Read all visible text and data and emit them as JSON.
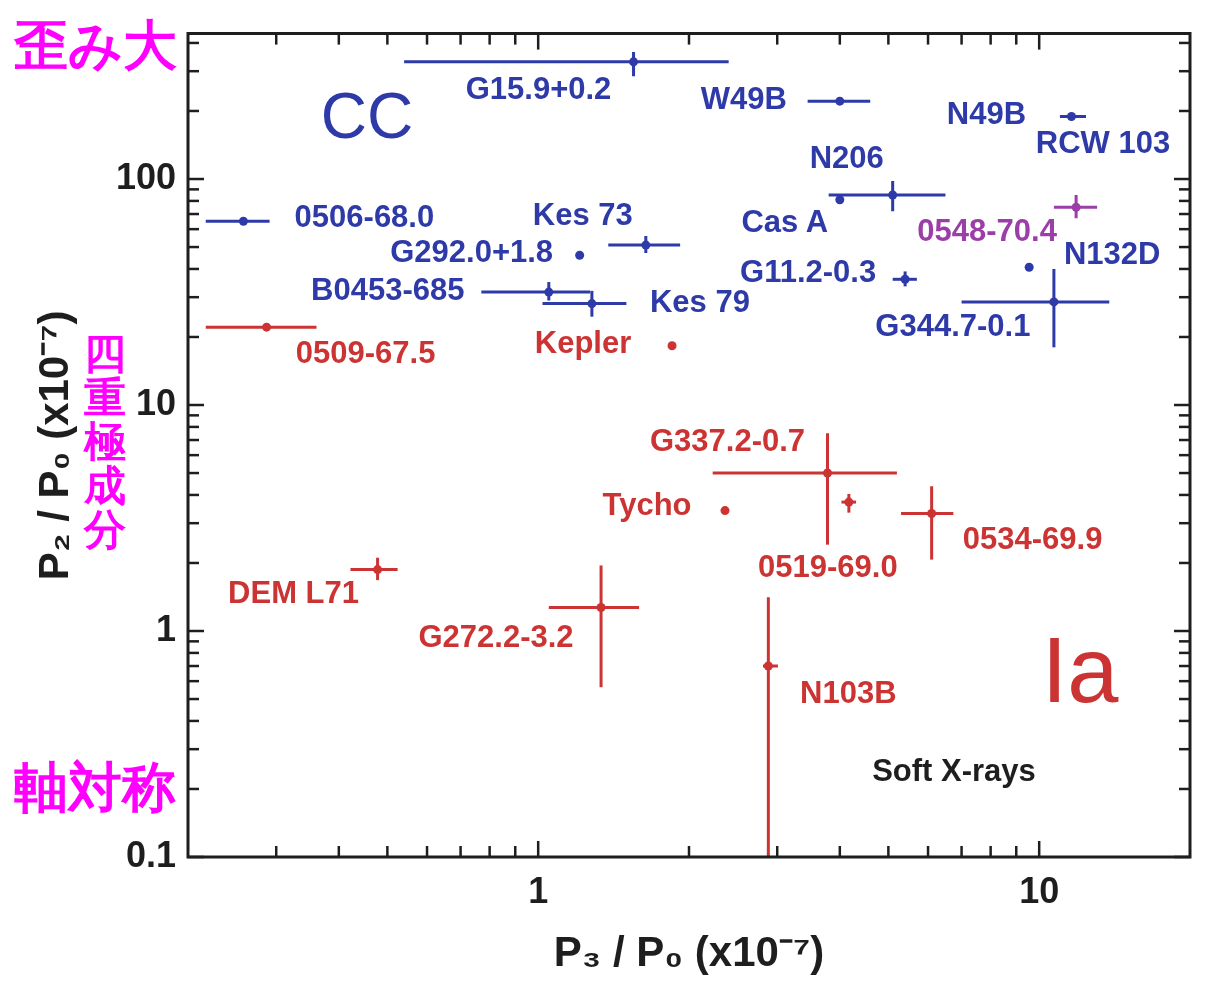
{
  "chart_data": {
    "type": "scatter",
    "log": "xy",
    "marker": "circle",
    "xlabel": "P₃ / P₀ (x10⁻⁷)",
    "ylabel": "P₂ / P₀ (x10⁻⁷)",
    "xlim": [
      0.2,
      20
    ],
    "ylim": [
      0.1,
      440
    ],
    "xticks": [
      {
        "value": 0.3,
        "label": null
      },
      {
        "value": 0.4,
        "label": null
      },
      {
        "value": 0.5,
        "label": null
      },
      {
        "value": 0.6,
        "label": null
      },
      {
        "value": 0.7,
        "label": null
      },
      {
        "value": 0.8,
        "label": null
      },
      {
        "value": 0.9,
        "label": null
      },
      1,
      {
        "value": 2,
        "label": null
      },
      {
        "value": 3,
        "label": null
      },
      {
        "value": 4,
        "label": null
      },
      {
        "value": 5,
        "label": null
      },
      {
        "value": 6,
        "label": null
      },
      {
        "value": 7,
        "label": null
      },
      {
        "value": 8,
        "label": null
      },
      {
        "value": 9,
        "label": null
      },
      10
    ],
    "yticks": [
      0.1,
      {
        "value": 0.2,
        "label": null
      },
      {
        "value": 0.3,
        "label": null
      },
      {
        "value": 0.4,
        "label": null
      },
      {
        "value": 0.5,
        "label": null
      },
      {
        "value": 0.6,
        "label": null
      },
      {
        "value": 0.7,
        "label": null
      },
      {
        "value": 0.8,
        "label": null
      },
      {
        "value": 0.9,
        "label": null
      },
      1,
      {
        "value": 2,
        "label": null
      },
      {
        "value": 3,
        "label": null
      },
      {
        "value": 4,
        "label": null
      },
      {
        "value": 5,
        "label": null
      },
      {
        "value": 6,
        "label": null
      },
      {
        "value": 7,
        "label": null
      },
      {
        "value": 8,
        "label": null
      },
      {
        "value": 9,
        "label": null
      },
      10,
      {
        "value": 20,
        "label": null
      },
      {
        "value": 30,
        "label": null
      },
      {
        "value": 40,
        "label": null
      },
      {
        "value": 50,
        "label": null
      },
      {
        "value": 60,
        "label": null
      },
      {
        "value": 70,
        "label": null
      },
      {
        "value": 80,
        "label": null
      },
      {
        "value": 90,
        "label": null
      },
      100,
      {
        "value": 200,
        "label": null
      },
      {
        "value": 300,
        "label": null
      },
      {
        "value": 400,
        "label": null
      }
    ],
    "series": [
      {
        "color": "#2d3aa8",
        "x": [
          1.55,
          4.0,
          11.6,
          5.1,
          4.0,
          0.258,
          1.64,
          1.21,
          1.05,
          1.28,
          5.4,
          10.7,
          9.55
        ],
        "values": [
          330,
          221,
          189,
          85,
          81,
          65,
          51,
          46,
          31.6,
          28.1,
          36,
          28.6,
          40.7
        ],
        "xerrors": [
          [
            0.54,
            2.4
          ],
          [
            3.45,
            4.6
          ],
          [
            11.0,
            12.4
          ],
          [
            3.8,
            6.5
          ],
          null,
          [
            0.217,
            0.291
          ],
          [
            1.38,
            1.92
          ],
          null,
          [
            0.77,
            1.27
          ],
          [
            1.02,
            1.5
          ],
          [
            5.1,
            5.7
          ],
          [
            7.0,
            13.8
          ],
          null
        ],
        "errors": [
          [
            285,
            365
          ],
          null,
          null,
          [
            72,
            98
          ],
          null,
          null,
          [
            47,
            56
          ],
          null,
          [
            29,
            35
          ],
          [
            24.6,
            32
          ],
          [
            33.5,
            39
          ],
          [
            18,
            40
          ],
          null
        ]
      },
      {
        "color": "#9b3ea8",
        "x": [
          11.85
        ],
        "values": [
          75
        ],
        "xerrors": [
          [
            10.7,
            13.05
          ]
        ],
        "errors": [
          [
            67,
            85
          ]
        ]
      },
      {
        "color": "#cc3333",
        "x": [
          0.287,
          1.85,
          3.78,
          4.17,
          2.36,
          6.1,
          0.478,
          1.335,
          2.88
        ],
        "values": [
          22.1,
          18.3,
          5.0,
          3.72,
          3.41,
          3.31,
          1.87,
          1.27,
          0.7
        ],
        "xerrors": [
          [
            0.217,
            0.361
          ],
          null,
          [
            2.23,
            5.2
          ],
          [
            4.03,
            4.31
          ],
          null,
          [
            5.3,
            6.74
          ],
          [
            0.422,
            0.524
          ],
          [
            1.05,
            1.59
          ],
          [
            2.81,
            3.01
          ]
        ],
        "errors": [
          null,
          null,
          [
            2.41,
            7.5
          ],
          [
            3.34,
            4.04
          ],
          null,
          [
            2.07,
            4.37
          ],
          [
            1.68,
            2.11
          ],
          [
            0.564,
            1.95
          ],
          [
            0.1,
            1.41
          ]
        ]
      }
    ],
    "annotations": [
      {
        "text": "G15.9+0.2",
        "x": 1.55,
        "y": 330
      },
      {
        "text": "W49B",
        "x": 4.0,
        "y": 221
      },
      {
        "text": "N49B",
        "x": 11.6,
        "y": 189
      },
      {
        "text": "N206",
        "x": 5.1,
        "y": 85
      },
      {
        "text": "Cas A",
        "x": 4.0,
        "y": 81
      },
      {
        "text": "N132D",
        "x": 9.55,
        "y": 40.7
      },
      {
        "text": "G11.2-0.3",
        "x": 5.4,
        "y": 36
      },
      {
        "text": "G344.7-0.1",
        "x": 10.7,
        "y": 28.6
      },
      {
        "text": "0506-68.0",
        "x": 0.258,
        "y": 65
      },
      {
        "text": "Kes 73",
        "x": 1.64,
        "y": 51
      },
      {
        "text": "G292.0+1.8",
        "x": 1.21,
        "y": 46
      },
      {
        "text": "B0453-685",
        "x": 1.05,
        "y": 31.6
      },
      {
        "text": "Kes 79",
        "x": 1.28,
        "y": 28.1
      },
      {
        "text": "0548-70.4",
        "x": 11.85,
        "y": 75
      },
      {
        "text": "0509-67.5",
        "x": 0.287,
        "y": 22.1
      },
      {
        "text": "Kepler",
        "x": 1.85,
        "y": 18.3
      },
      {
        "text": "G337.2-0.7",
        "x": 3.78,
        "y": 5.0
      },
      {
        "text": "Tycho",
        "x": 2.36,
        "y": 3.41
      },
      {
        "text": "0519-69.0",
        "x": 4.17,
        "y": 3.72
      },
      {
        "text": "0534-69.9",
        "x": 6.1,
        "y": 3.31
      },
      {
        "text": "DEM L71",
        "x": 0.478,
        "y": 1.87
      },
      {
        "text": "G272.2-3.2",
        "x": 1.335,
        "y": 1.27
      },
      {
        "text": "N103B",
        "x": 2.88,
        "y": 0.7
      },
      "RCW 103",
      "Soft X-rays",
      "CC",
      "Ia",
      "歪み大",
      "四重極成分",
      "軸対称"
    ]
  }
}
